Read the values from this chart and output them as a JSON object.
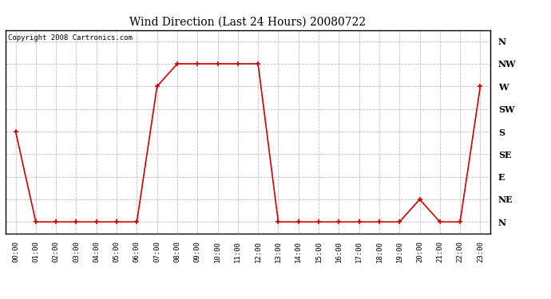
{
  "title": "Wind Direction (Last 24 Hours) 20080722",
  "copyright": "Copyright 2008 Cartronics.com",
  "x_labels": [
    "00:00",
    "01:00",
    "02:00",
    "03:00",
    "04:00",
    "05:00",
    "06:00",
    "07:00",
    "08:00",
    "09:00",
    "10:00",
    "11:00",
    "12:00",
    "13:00",
    "14:00",
    "15:00",
    "16:00",
    "17:00",
    "18:00",
    "19:00",
    "20:00",
    "21:00",
    "22:00",
    "23:00"
  ],
  "y_labels": [
    "N",
    "NE",
    "E",
    "SE",
    "S",
    "SW",
    "W",
    "NW",
    "N"
  ],
  "y_values": [
    0,
    1,
    2,
    3,
    4,
    5,
    6,
    7,
    8
  ],
  "wind_data": {
    "00:00": 4,
    "01:00": 0,
    "02:00": 0,
    "03:00": 0,
    "04:00": 0,
    "05:00": 0,
    "06:00": 0,
    "07:00": 6,
    "08:00": 7,
    "09:00": 7,
    "10:00": 7,
    "11:00": 7,
    "12:00": 7,
    "13:00": 0,
    "14:00": 0,
    "15:00": 0,
    "16:00": 0,
    "17:00": 0,
    "18:00": 0,
    "19:00": 0,
    "20:00": 1,
    "21:00": 0,
    "22:00": 0,
    "23:00": 6
  },
  "line_color": "#cc0000",
  "marker": "+",
  "marker_size": 5,
  "marker_linewidth": 1.2,
  "line_width": 1.2,
  "bg_color": "#ffffff",
  "plot_bg_color": "#ffffff",
  "grid_color": "#bbbbbb",
  "grid_style": "--",
  "title_fontsize": 10,
  "copyright_fontsize": 6.5,
  "ytick_fontsize": 8,
  "xtick_fontsize": 6.5,
  "fig_width": 6.9,
  "fig_height": 3.75,
  "dpi": 100
}
